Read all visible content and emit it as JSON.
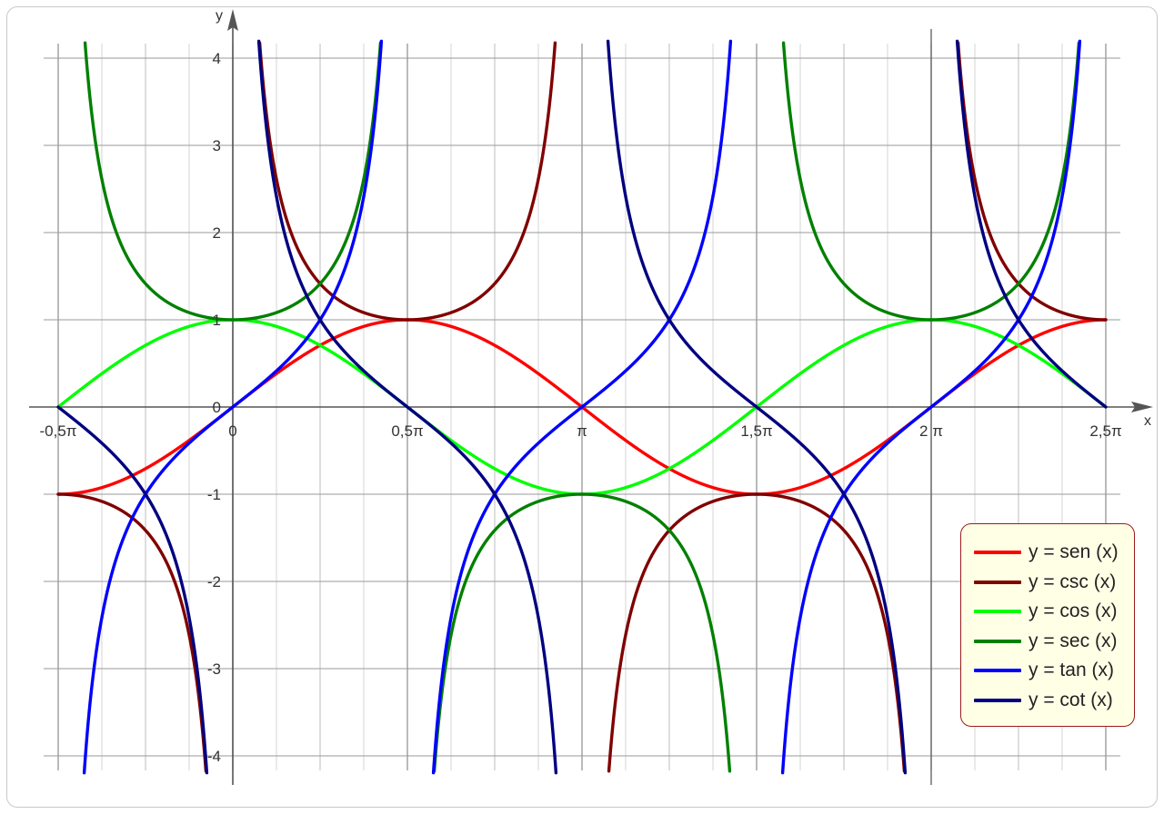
{
  "chart_data": {
    "type": "line",
    "title": "",
    "xlabel": "x",
    "ylabel": "y",
    "xlim": [
      -0.5,
      2.5
    ],
    "xlim_unit": "pi",
    "ylim": [
      -4,
      4
    ],
    "grid": true,
    "legend_position": "bottom-right",
    "x_tick_labels": [
      "-0,5π",
      "0",
      "0,5π",
      "π",
      "1,5π",
      "2 π",
      "2,5π"
    ],
    "y_tick_labels": [
      "4",
      "3",
      "2",
      "1",
      "0",
      "-1",
      "-2",
      "-3",
      "-4"
    ],
    "series": [
      {
        "name": "y = sen (x)",
        "function": "sin",
        "color": "#ff0000"
      },
      {
        "name": "y = csc (x)",
        "function": "csc",
        "color": "#800000"
      },
      {
        "name": "y = cos (x)",
        "function": "cos",
        "color": "#00ff00"
      },
      {
        "name": "y = sec (x)",
        "function": "sec",
        "color": "#008000"
      },
      {
        "name": "y = tan (x)",
        "function": "tan",
        "color": "#0000ff"
      },
      {
        "name": "y = cot (x)",
        "function": "cot",
        "color": "#000080"
      }
    ]
  }
}
